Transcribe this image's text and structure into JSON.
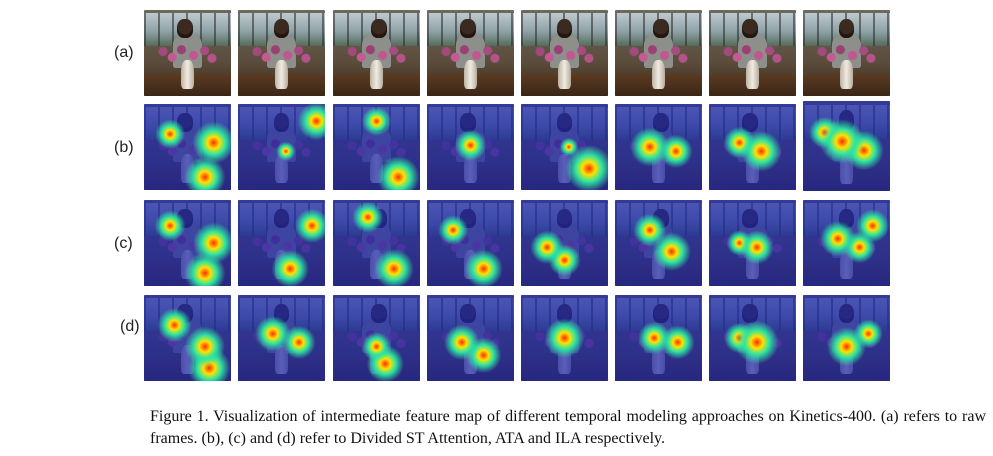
{
  "figure": {
    "rows": [
      {
        "label": "(a)",
        "kind": "raw"
      },
      {
        "label": "(b)",
        "kind": "heatmap"
      },
      {
        "label": "(c)",
        "kind": "heatmap"
      },
      {
        "label": "(d)",
        "kind": "heatmap"
      }
    ],
    "frames_per_row": 8,
    "colors": {
      "heat_hot": "#ff2a00",
      "heat_warm": "#ffe000",
      "heat_mid": "#2ee6a0",
      "heat_cool": "#2a3fd8",
      "heat_base": "#1a1f8a"
    }
  },
  "caption": {
    "text": "Figure 1. Visualization of intermediate feature map of different temporal modeling approaches on Kinetics-400. (a) refers to raw frames. (b), (c) and (d) refer to Divided ST Attention, ATA and ILA respectively."
  }
}
